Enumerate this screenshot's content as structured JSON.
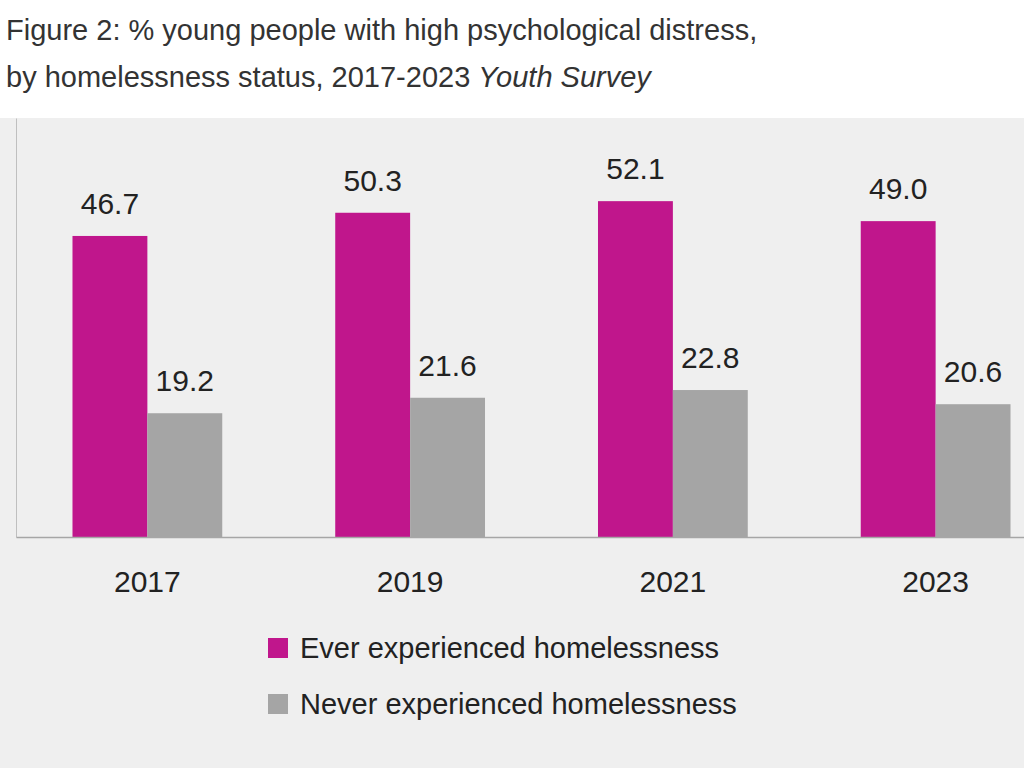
{
  "chart_data": {
    "type": "bar",
    "title": [
      "Figure 2: % young people with high psychological distress,",
      "by homelessness status, 2017-2023 Youth Survey"
    ],
    "categories": [
      "2017",
      "2019",
      "2021",
      "2023"
    ],
    "series": [
      {
        "name": "Ever experienced homelessness",
        "color": "#c0168c",
        "values": [
          46.7,
          50.3,
          52.1,
          49.0
        ],
        "value_labels": [
          "46.7",
          "50.3",
          "52.1",
          "49.0"
        ]
      },
      {
        "name": "Never experienced homelessness",
        "color": "#a5a5a5",
        "values": [
          19.2,
          21.6,
          22.8,
          20.6
        ]
      }
    ],
    "ylim": [
      0,
      65
    ],
    "tick_labels": "x",
    "data_labels": true,
    "legend": "bottom",
    "grid": false
  }
}
